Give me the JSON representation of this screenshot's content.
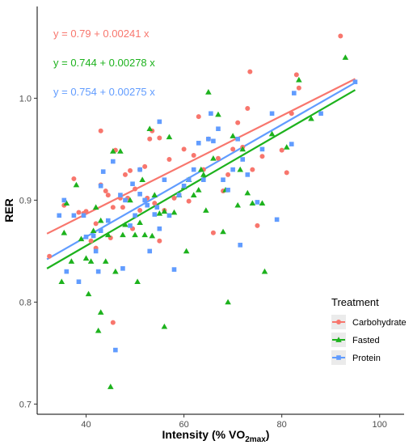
{
  "chart_data": {
    "type": "scatter",
    "xlabel": "Intensity (% VO",
    "xlabel_sub": "2max",
    "xlabel_tail": ")",
    "ylabel": "RER",
    "xlim": [
      30,
      105
    ],
    "ylim": [
      0.69,
      1.09
    ],
    "xticks": [
      40,
      60,
      80,
      100
    ],
    "yticks": [
      0.7,
      0.8,
      0.9,
      1.0
    ],
    "ytick_labels": [
      "0.7",
      "0.8",
      "0.9",
      "1.0"
    ],
    "grid": false,
    "legend": {
      "title": "Treatment",
      "placement": "right"
    },
    "series": [
      {
        "name": "Carbohydrate",
        "color": "#F8766D",
        "marker": "circle",
        "equation": "y = 0.79 + 0.00241 x",
        "fit": {
          "intercept": 0.79,
          "slope": 0.00241,
          "xrange": [
            32,
            95
          ]
        },
        "points": [
          [
            32.5,
            0.845
          ],
          [
            35.5,
            0.895
          ],
          [
            37.5,
            0.921
          ],
          [
            38.5,
            0.888
          ],
          [
            39.5,
            0.887
          ],
          [
            40,
            0.889
          ],
          [
            41,
            0.86
          ],
          [
            42,
            0.853
          ],
          [
            42,
            0.877
          ],
          [
            43,
            0.915
          ],
          [
            43,
            0.968
          ],
          [
            44,
            0.909
          ],
          [
            44.5,
            0.905
          ],
          [
            45,
            0.863
          ],
          [
            45.5,
            0.893
          ],
          [
            45.5,
            0.78
          ],
          [
            46,
            0.949
          ],
          [
            47,
            0.902
          ],
          [
            47.5,
            0.893
          ],
          [
            48,
            0.925
          ],
          [
            48.5,
            0.902
          ],
          [
            49,
            0.929
          ],
          [
            49.5,
            0.872
          ],
          [
            50,
            0.911
          ],
          [
            51,
            0.89
          ],
          [
            51,
            0.93
          ],
          [
            52,
            0.933
          ],
          [
            52.5,
            0.902
          ],
          [
            53,
            0.96
          ],
          [
            53.5,
            0.968
          ],
          [
            54,
            0.897
          ],
          [
            55,
            0.961
          ],
          [
            55,
            0.86
          ],
          [
            56,
            0.89
          ],
          [
            57,
            0.94
          ],
          [
            58,
            0.902
          ],
          [
            59,
            0.905
          ],
          [
            60,
            0.95
          ],
          [
            61,
            0.899
          ],
          [
            62,
            0.944
          ],
          [
            63,
            0.982
          ],
          [
            64,
            0.93
          ],
          [
            65,
            0.96
          ],
          [
            66,
            0.868
          ],
          [
            67,
            0.941
          ],
          [
            68,
            0.909
          ],
          [
            69,
            0.925
          ],
          [
            70,
            0.95
          ],
          [
            71,
            0.976
          ],
          [
            72,
            0.952
          ],
          [
            73,
            0.99
          ],
          [
            73.5,
            1.026
          ],
          [
            74,
            0.93
          ],
          [
            75,
            0.875
          ],
          [
            76,
            0.943
          ],
          [
            80,
            0.949
          ],
          [
            81,
            0.927
          ],
          [
            82,
            0.985
          ],
          [
            83,
            1.023
          ],
          [
            83.5,
            1.01
          ],
          [
            92,
            1.061
          ]
        ]
      },
      {
        "name": "Fasted",
        "color": "#1DB21D",
        "marker": "triangle",
        "equation": "y = 0.744 + 0.00278 x",
        "fit": {
          "intercept": 0.744,
          "slope": 0.00278,
          "xrange": [
            32,
            95
          ]
        },
        "points": [
          [
            35,
            0.82
          ],
          [
            35.5,
            0.868
          ],
          [
            36,
            0.897
          ],
          [
            37,
            0.84
          ],
          [
            38,
            0.915
          ],
          [
            39,
            0.862
          ],
          [
            40,
            0.843
          ],
          [
            40.5,
            0.808
          ],
          [
            41,
            0.84
          ],
          [
            41.5,
            0.87
          ],
          [
            42,
            0.893
          ],
          [
            42.5,
            0.772
          ],
          [
            43,
            0.79
          ],
          [
            43,
            0.88
          ],
          [
            44,
            0.84
          ],
          [
            44.5,
            0.866
          ],
          [
            45,
            0.717
          ],
          [
            45.5,
            0.948
          ],
          [
            46,
            0.83
          ],
          [
            47,
            0.948
          ],
          [
            47.5,
            0.866
          ],
          [
            48,
            0.876
          ],
          [
            49,
            0.9
          ],
          [
            50,
            0.866
          ],
          [
            50.5,
            0.82
          ],
          [
            51,
            0.878
          ],
          [
            51.5,
            0.92
          ],
          [
            52,
            0.866
          ],
          [
            53,
            0.97
          ],
          [
            53.5,
            0.865
          ],
          [
            54,
            0.905
          ],
          [
            55,
            0.887
          ],
          [
            56,
            0.776
          ],
          [
            56,
            0.889
          ],
          [
            57,
            0.962
          ],
          [
            58,
            0.888
          ],
          [
            59,
            0.905
          ],
          [
            60,
            0.913
          ],
          [
            60.5,
            0.85
          ],
          [
            61,
            0.92
          ],
          [
            62,
            0.905
          ],
          [
            63,
            0.91
          ],
          [
            63.5,
            0.93
          ],
          [
            64,
            0.925
          ],
          [
            64.5,
            0.89
          ],
          [
            65,
            1.006
          ],
          [
            66,
            0.941
          ],
          [
            67,
            0.984
          ],
          [
            68,
            0.869
          ],
          [
            68.5,
            0.91
          ],
          [
            69,
            0.8
          ],
          [
            70,
            0.963
          ],
          [
            71,
            0.895
          ],
          [
            71.5,
            0.93
          ],
          [
            72,
            0.95
          ],
          [
            73,
            0.907
          ],
          [
            74,
            0.897
          ],
          [
            76,
            0.897
          ],
          [
            76.5,
            0.83
          ],
          [
            78,
            0.965
          ],
          [
            81,
            0.952
          ],
          [
            83.5,
            1.018
          ],
          [
            86,
            0.98
          ],
          [
            93,
            1.04
          ]
        ]
      },
      {
        "name": "Protein",
        "color": "#619CFF",
        "marker": "square",
        "equation": "y = 0.754 + 0.00275 x",
        "fit": {
          "intercept": 0.754,
          "slope": 0.00275,
          "xrange": [
            32,
            95
          ]
        },
        "points": [
          [
            34.5,
            0.885
          ],
          [
            35.5,
            0.9
          ],
          [
            36,
            0.83
          ],
          [
            37.5,
            0.885
          ],
          [
            38.5,
            0.82
          ],
          [
            39.5,
            0.885
          ],
          [
            40,
            0.864
          ],
          [
            41.5,
            0.865
          ],
          [
            42,
            0.85
          ],
          [
            42.5,
            0.83
          ],
          [
            43,
            0.87
          ],
          [
            43,
            0.914
          ],
          [
            43.5,
            0.928
          ],
          [
            44.5,
            0.88
          ],
          [
            45.5,
            0.938
          ],
          [
            46,
            0.753
          ],
          [
            47,
            0.905
          ],
          [
            47.5,
            0.833
          ],
          [
            48,
            0.9
          ],
          [
            49,
            0.875
          ],
          [
            49.5,
            0.916
          ],
          [
            50,
            0.885
          ],
          [
            51,
            0.906
          ],
          [
            51,
            0.93
          ],
          [
            52,
            0.9
          ],
          [
            52.5,
            0.895
          ],
          [
            53,
            0.85
          ],
          [
            54,
            0.886
          ],
          [
            54.5,
            0.893
          ],
          [
            55,
            0.872
          ],
          [
            55,
            0.977
          ],
          [
            56,
            0.92
          ],
          [
            57,
            0.885
          ],
          [
            58,
            0.832
          ],
          [
            59,
            0.905
          ],
          [
            60,
            0.914
          ],
          [
            61,
            0.92
          ],
          [
            62,
            0.93
          ],
          [
            63,
            0.956
          ],
          [
            64,
            0.92
          ],
          [
            65,
            0.96
          ],
          [
            65.5,
            0.985
          ],
          [
            66,
            0.958
          ],
          [
            67,
            0.97
          ],
          [
            68,
            0.92
          ],
          [
            69,
            0.91
          ],
          [
            70,
            0.93
          ],
          [
            71,
            0.96
          ],
          [
            71.5,
            0.856
          ],
          [
            72,
            0.94
          ],
          [
            73,
            0.925
          ],
          [
            75,
            0.898
          ],
          [
            76,
            0.95
          ],
          [
            78,
            0.985
          ],
          [
            79,
            0.881
          ],
          [
            82,
            0.955
          ],
          [
            82.5,
            1.005
          ],
          [
            88,
            0.985
          ],
          [
            95,
            1.016
          ]
        ]
      }
    ]
  }
}
